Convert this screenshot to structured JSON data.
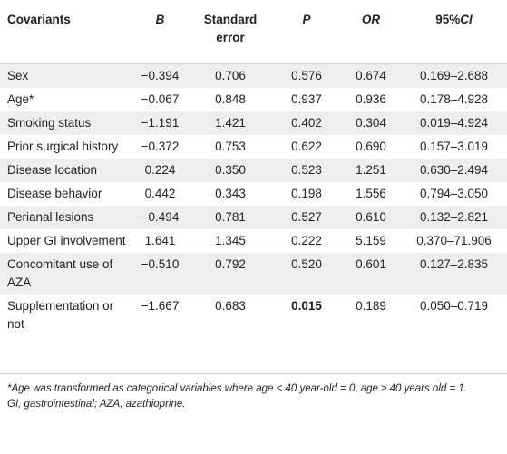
{
  "table": {
    "headers": {
      "covariants": "Covariants",
      "b": "B",
      "standard_error": "Standard error",
      "p": "P",
      "or": "OR",
      "ci_prefix": "95%",
      "ci_suffix": "CI"
    },
    "rows": [
      {
        "covariant": "Sex",
        "b": "−0.394",
        "se": "0.706",
        "p": "0.576",
        "or": "0.674",
        "ci": "0.169–2.688"
      },
      {
        "covariant": "Age*",
        "b": "−0.067",
        "se": "0.848",
        "p": "0.937",
        "or": "0.936",
        "ci": "0.178–4.928"
      },
      {
        "covariant": "Smoking status",
        "b": "−1.191",
        "se": "1.421",
        "p": "0.402",
        "or": "0.304",
        "ci": "0.019–4.924"
      },
      {
        "covariant": "Prior surgical history",
        "b": "−0.372",
        "se": "0.753",
        "p": "0.622",
        "or": "0.690",
        "ci": "0.157–3.019"
      },
      {
        "covariant": "Disease location",
        "b": "0.224",
        "se": "0.350",
        "p": "0.523",
        "or": "1.251",
        "ci": "0.630–2.494"
      },
      {
        "covariant": "Disease behavior",
        "b": "0.442",
        "se": "0.343",
        "p": "0.198",
        "or": "1.556",
        "ci": "0.794–3.050"
      },
      {
        "covariant": "Perianal lesions",
        "b": "−0.494",
        "se": "0.781",
        "p": "0.527",
        "or": "0.610",
        "ci": "0.132–2.821"
      },
      {
        "covariant": "Upper GI involvement",
        "b": "1.641",
        "se": "1.345",
        "p": "0.222",
        "or": "5.159",
        "ci": "0.370–71.906"
      },
      {
        "covariant": "Concomitant use of AZA",
        "b": "−0.510",
        "se": "0.792",
        "p": "0.520",
        "or": "0.601",
        "ci": "0.127–2.835"
      },
      {
        "covariant": "Supplementation or not",
        "b": "−1.667",
        "se": "0.683",
        "p": "0.015",
        "or": "0.189",
        "ci": "0.050–0.719",
        "p_bold": true
      }
    ]
  },
  "footnotes": {
    "note1": "*Age was transformed as categorical variables where age < 40 year-old = 0, age ≥ 40 years old = 1.",
    "note2": "GI, gastrointestinal; AZA, azathioprine."
  }
}
